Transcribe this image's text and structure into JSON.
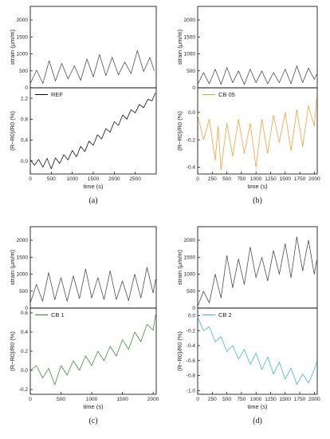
{
  "chart_data": [
    {
      "id": "a",
      "type": "line",
      "caption": "(a)",
      "xlabel": "time (s)",
      "xlim": [
        0,
        3000
      ],
      "xticks": [
        0,
        500,
        1000,
        1500,
        2000,
        2500
      ],
      "top": {
        "ylabel": "strain (μm/m)",
        "ylim": [
          0,
          2400
        ],
        "yticks": [
          0,
          500,
          1000,
          1500,
          2000
        ],
        "series": [
          {
            "color": "#444444",
            "points": [
              [
                0,
                120
              ],
              [
                150,
                520
              ],
              [
                300,
                130
              ],
              [
                450,
                800
              ],
              [
                600,
                200
              ],
              [
                750,
                720
              ],
              [
                900,
                260
              ],
              [
                1050,
                650
              ],
              [
                1200,
                220
              ],
              [
                1350,
                850
              ],
              [
                1500,
                320
              ],
              [
                1650,
                980
              ],
              [
                1800,
                360
              ],
              [
                1950,
                900
              ],
              [
                2100,
                380
              ],
              [
                2250,
                760
              ],
              [
                2400,
                420
              ],
              [
                2550,
                1100
              ],
              [
                2700,
                480
              ],
              [
                2850,
                900
              ],
              [
                2950,
                500
              ]
            ]
          }
        ]
      },
      "bottom": {
        "ylabel": "(R−R0)/R0 (%)",
        "ylim": [
          -0.25,
          1.4
        ],
        "yticks": [
          0.0,
          0.4,
          0.8,
          1.2
        ],
        "legend": "REF",
        "series": [
          {
            "color": "#000000",
            "points": [
              [
                0,
                0.02
              ],
              [
                100,
                -0.08
              ],
              [
                200,
                0.03
              ],
              [
                300,
                -0.12
              ],
              [
                400,
                0.05
              ],
              [
                500,
                -0.15
              ],
              [
                600,
                0.06
              ],
              [
                700,
                -0.05
              ],
              [
                800,
                0.12
              ],
              [
                900,
                0.02
              ],
              [
                1000,
                0.2
              ],
              [
                1100,
                0.08
              ],
              [
                1200,
                0.28
              ],
              [
                1300,
                0.18
              ],
              [
                1400,
                0.38
              ],
              [
                1500,
                0.3
              ],
              [
                1600,
                0.5
              ],
              [
                1700,
                0.42
              ],
              [
                1800,
                0.62
              ],
              [
                1900,
                0.55
              ],
              [
                2000,
                0.75
              ],
              [
                2100,
                0.68
              ],
              [
                2200,
                0.88
              ],
              [
                2300,
                0.8
              ],
              [
                2400,
                0.98
              ],
              [
                2500,
                0.92
              ],
              [
                2600,
                1.08
              ],
              [
                2700,
                1.02
              ],
              [
                2800,
                1.18
              ],
              [
                2900,
                1.15
              ],
              [
                2980,
                1.3
              ]
            ]
          }
        ]
      }
    },
    {
      "id": "b",
      "type": "line",
      "caption": "(b)",
      "xlabel": "time (s)",
      "xlim": [
        0,
        2050
      ],
      "xticks": [
        0,
        250,
        500,
        750,
        1000,
        1250,
        1500,
        1750,
        2000
      ],
      "top": {
        "ylabel": "strain (μm/m)",
        "ylim": [
          0,
          2400
        ],
        "yticks": [
          0,
          500,
          1000,
          1500,
          2000
        ],
        "series": [
          {
            "color": "#444444",
            "points": [
              [
                0,
                100
              ],
              [
                100,
                450
              ],
              [
                200,
                120
              ],
              [
                300,
                550
              ],
              [
                400,
                100
              ],
              [
                500,
                600
              ],
              [
                600,
                150
              ],
              [
                700,
                500
              ],
              [
                800,
                100
              ],
              [
                900,
                550
              ],
              [
                1000,
                150
              ],
              [
                1100,
                500
              ],
              [
                1200,
                120
              ],
              [
                1300,
                450
              ],
              [
                1400,
                150
              ],
              [
                1500,
                550
              ],
              [
                1600,
                120
              ],
              [
                1700,
                650
              ],
              [
                1800,
                150
              ],
              [
                1900,
                580
              ],
              [
                2000,
                250
              ],
              [
                2040,
                400
              ]
            ]
          }
        ]
      },
      "bottom": {
        "ylabel": "(R−R0)/R0 (%)",
        "ylim": [
          -0.45,
          0.18
        ],
        "yticks": [
          -0.4,
          -0.2,
          0.0
        ],
        "legend": "CB 05",
        "series": [
          {
            "color": "#f29a2e",
            "points": [
              [
                0,
                -0.02
              ],
              [
                100,
                -0.2
              ],
              [
                200,
                -0.05
              ],
              [
                300,
                -0.35
              ],
              [
                350,
                -0.1
              ],
              [
                400,
                -0.42
              ],
              [
                500,
                -0.08
              ],
              [
                600,
                -0.32
              ],
              [
                700,
                -0.05
              ],
              [
                800,
                -0.3
              ],
              [
                900,
                -0.08
              ],
              [
                1000,
                -0.4
              ],
              [
                1100,
                -0.05
              ],
              [
                1200,
                -0.3
              ],
              [
                1300,
                -0.02
              ],
              [
                1400,
                -0.22
              ],
              [
                1500,
                0.0
              ],
              [
                1600,
                -0.28
              ],
              [
                1700,
                0.02
              ],
              [
                1800,
                -0.25
              ],
              [
                1900,
                0.05
              ],
              [
                2000,
                -0.1
              ],
              [
                2040,
                0.1
              ]
            ]
          }
        ]
      }
    },
    {
      "id": "c",
      "type": "line",
      "caption": "(c)",
      "xlabel": "time (s)",
      "xlim": [
        0,
        2050
      ],
      "xticks": [
        0,
        500,
        1000,
        1500,
        2000
      ],
      "top": {
        "ylabel": "strain (μm/m)",
        "ylim": [
          0,
          2400
        ],
        "yticks": [
          0,
          500,
          1000,
          1500,
          2000
        ],
        "series": [
          {
            "color": "#444444",
            "points": [
              [
                0,
                150
              ],
              [
                100,
                700
              ],
              [
                200,
                200
              ],
              [
                300,
                1050
              ],
              [
                400,
                250
              ],
              [
                500,
                900
              ],
              [
                600,
                200
              ],
              [
                700,
                950
              ],
              [
                800,
                280
              ],
              [
                900,
                1150
              ],
              [
                1000,
                300
              ],
              [
                1100,
                900
              ],
              [
                1200,
                250
              ],
              [
                1300,
                1100
              ],
              [
                1400,
                250
              ],
              [
                1500,
                800
              ],
              [
                1600,
                220
              ],
              [
                1700,
                1000
              ],
              [
                1800,
                300
              ],
              [
                1900,
                1200
              ],
              [
                2000,
                450
              ],
              [
                2040,
                850
              ]
            ]
          }
        ]
      },
      "bottom": {
        "ylabel": "(R−R0)/R0 (%)",
        "ylim": [
          -0.25,
          0.65
        ],
        "yticks": [
          -0.2,
          0.0,
          0.2,
          0.4,
          0.6
        ],
        "legend": "CB 1",
        "series": [
          {
            "color": "#2e8b2e",
            "points": [
              [
                0,
                0.0
              ],
              [
                100,
                0.05
              ],
              [
                200,
                -0.08
              ],
              [
                300,
                0.02
              ],
              [
                400,
                -0.15
              ],
              [
                500,
                0.05
              ],
              [
                600,
                -0.05
              ],
              [
                700,
                0.1
              ],
              [
                800,
                0.0
              ],
              [
                900,
                0.15
              ],
              [
                1000,
                0.05
              ],
              [
                1100,
                0.2
              ],
              [
                1200,
                0.1
              ],
              [
                1300,
                0.25
              ],
              [
                1400,
                0.15
              ],
              [
                1500,
                0.32
              ],
              [
                1600,
                0.22
              ],
              [
                1700,
                0.4
              ],
              [
                1800,
                0.3
              ],
              [
                1900,
                0.48
              ],
              [
                2000,
                0.42
              ],
              [
                2040,
                0.58
              ]
            ]
          }
        ]
      }
    },
    {
      "id": "d",
      "type": "line",
      "caption": "(d)",
      "xlabel": "time (s)",
      "xlim": [
        0,
        2050
      ],
      "xticks": [
        0,
        250,
        500,
        750,
        1000,
        1250,
        1500,
        1750,
        2000
      ],
      "top": {
        "ylabel": "strain (μm/m)",
        "ylim": [
          0,
          2400
        ],
        "yticks": [
          0,
          500,
          1000,
          1500,
          2000
        ],
        "series": [
          {
            "color": "#444444",
            "points": [
              [
                0,
                50
              ],
              [
                100,
                500
              ],
              [
                200,
                150
              ],
              [
                300,
                1000
              ],
              [
                400,
                300
              ],
              [
                500,
                1550
              ],
              [
                600,
                600
              ],
              [
                700,
                1450
              ],
              [
                800,
                700
              ],
              [
                900,
                1800
              ],
              [
                1000,
                900
              ],
              [
                1100,
                1500
              ],
              [
                1200,
                800
              ],
              [
                1300,
                1700
              ],
              [
                1400,
                1000
              ],
              [
                1500,
                1900
              ],
              [
                1600,
                900
              ],
              [
                1700,
                2100
              ],
              [
                1800,
                1100
              ],
              [
                1900,
                2000
              ],
              [
                2000,
                1000
              ],
              [
                2040,
                1400
              ]
            ]
          }
        ]
      },
      "bottom": {
        "ylabel": "(R−R0)/R0 (%)",
        "ylim": [
          -1.05,
          0.1
        ],
        "yticks": [
          -1.0,
          -0.8,
          -0.6,
          -0.4,
          -0.2,
          0.0
        ],
        "legend": "CB 2",
        "series": [
          {
            "color": "#2eb4c8",
            "points": [
              [
                0,
                -0.02
              ],
              [
                100,
                -0.2
              ],
              [
                200,
                -0.15
              ],
              [
                300,
                -0.35
              ],
              [
                400,
                -0.28
              ],
              [
                500,
                -0.48
              ],
              [
                600,
                -0.4
              ],
              [
                700,
                -0.58
              ],
              [
                800,
                -0.45
              ],
              [
                900,
                -0.65
              ],
              [
                1000,
                -0.5
              ],
              [
                1100,
                -0.72
              ],
              [
                1200,
                -0.55
              ],
              [
                1300,
                -0.78
              ],
              [
                1400,
                -0.62
              ],
              [
                1500,
                -0.85
              ],
              [
                1600,
                -0.7
              ],
              [
                1700,
                -0.92
              ],
              [
                1800,
                -0.78
              ],
              [
                1900,
                -0.9
              ],
              [
                2000,
                -0.72
              ],
              [
                2040,
                -0.62
              ]
            ]
          }
        ]
      }
    }
  ]
}
